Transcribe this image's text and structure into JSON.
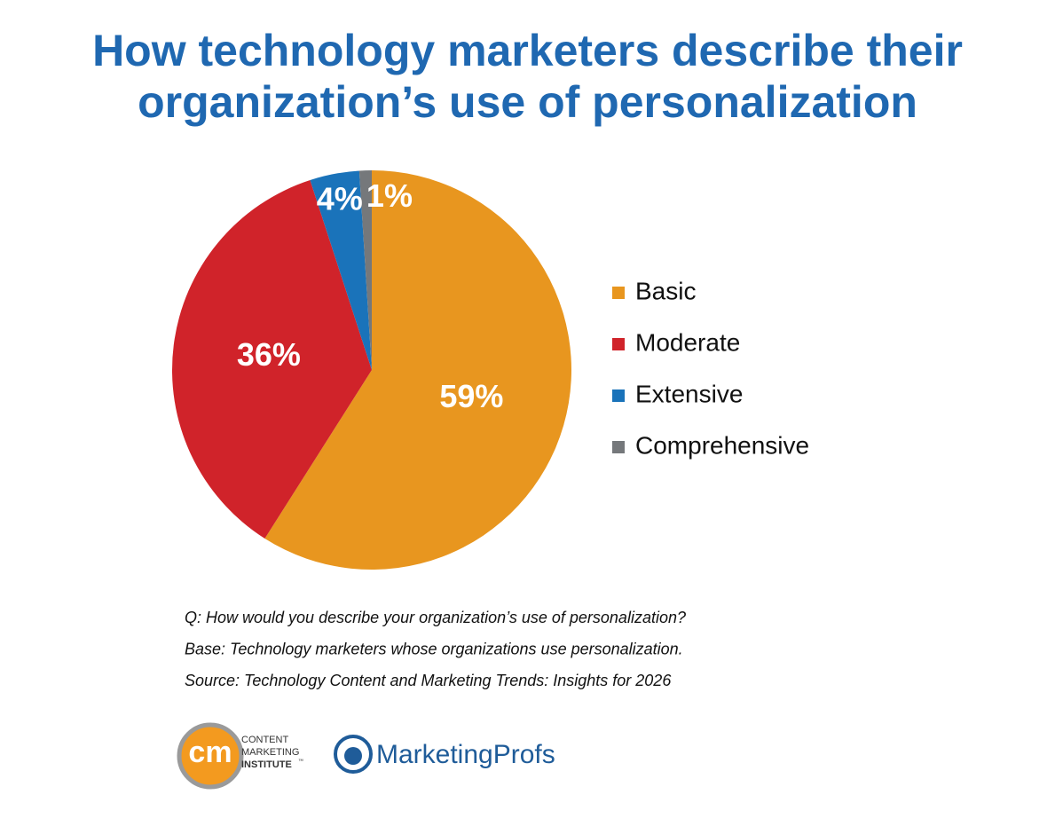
{
  "chart_data": {
    "type": "pie",
    "title": "How technology marketers describe their organization’s use of personalization",
    "categories": [
      "Basic",
      "Moderate",
      "Extensive",
      "Comprehensive"
    ],
    "values": [
      59,
      36,
      4,
      1
    ],
    "value_labels": [
      "59%",
      "36%",
      "4%",
      "1%"
    ],
    "colors": [
      "#e8961f",
      "#d0232a",
      "#1a73ba",
      "#75787b"
    ],
    "legend": "right",
    "notes": [
      "Q: How would you describe your organization’s use of personalization?",
      "Base: Technology marketers whose organizations use personalization.",
      "Source: Technology Content and Marketing Trends: Insights for 2026"
    ]
  },
  "footer": {
    "cmi_logo": {
      "mark": "cm",
      "lines": [
        "CONTENT",
        "MARKETING",
        "INSTITUTE"
      ],
      "tm": "™"
    },
    "mp_logo": "MarketingProfs"
  }
}
